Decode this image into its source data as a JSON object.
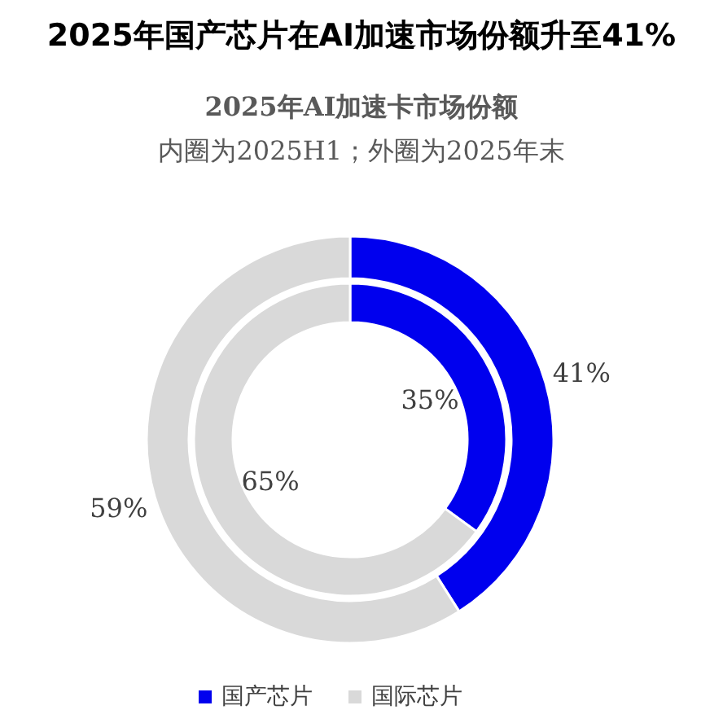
{
  "chart_data": {
    "type": "donut",
    "title": "2025年国产芯片在AI加速市场份额升至41%",
    "subtitle": "2025年AI加速卡市场份额",
    "annotations": [
      "内圈为2025H1；外圈为2025年末"
    ],
    "categories": [
      "国产芯片",
      "国际芯片"
    ],
    "colors": [
      "#0000ee",
      "#d9d9d9"
    ],
    "series": [
      {
        "values": [
          35,
          65
        ],
        "value_labels": [
          "35%",
          "65%"
        ]
      },
      {
        "values": [
          41,
          59
        ],
        "value_labels": [
          "41%",
          "59%"
        ]
      }
    ],
    "legend": "bottom"
  }
}
